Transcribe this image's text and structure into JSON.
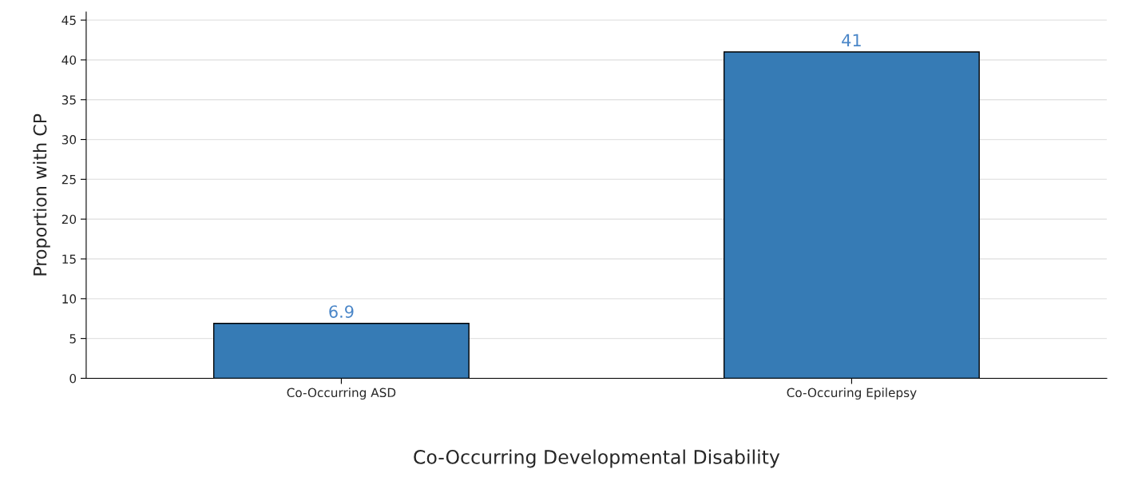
{
  "chart_data": {
    "type": "bar",
    "xlabel": "Co-Occurring Developmental Disability",
    "ylabel": "Proportion with CP",
    "categories": [
      "Co-Occurring ASD",
      "Co-Occuring Epilepsy"
    ],
    "values": [
      6.9,
      41
    ],
    "color": "#367bb5",
    "ylim": [
      0,
      46
    ],
    "yticks": [
      0,
      5,
      10,
      15,
      20,
      25,
      30,
      35,
      40,
      45
    ],
    "grid": "y",
    "data_labels": true
  }
}
